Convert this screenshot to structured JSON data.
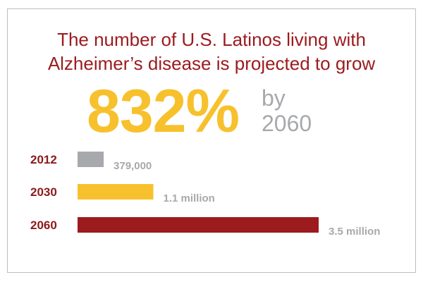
{
  "headline": {
    "line1": "The number of U.S. Latinos living with",
    "line2": "Alzheimer’s disease is projected to grow"
  },
  "highlight": {
    "value": "832%",
    "suffix_line1": "by",
    "suffix_line2": "2060"
  },
  "colors": {
    "headline": "#9b1b1e",
    "highlight": "#f7c12d",
    "muted": "#a7a9ac",
    "bar_2012": "#a7a9ac",
    "bar_2030": "#f7c12d",
    "bar_2060": "#9b1b1e"
  },
  "chart_data": {
    "type": "bar",
    "orientation": "horizontal",
    "categories": [
      "2012",
      "2030",
      "2060"
    ],
    "values": [
      379000,
      1100000,
      3500000
    ],
    "value_labels": [
      "379,000",
      "1.1 million",
      "3.5 million"
    ],
    "bar_colors": [
      "#a7a9ac",
      "#f7c12d",
      "#9b1b1e"
    ],
    "xlim": [
      0,
      3500000
    ],
    "grid": false,
    "legend": "none"
  }
}
